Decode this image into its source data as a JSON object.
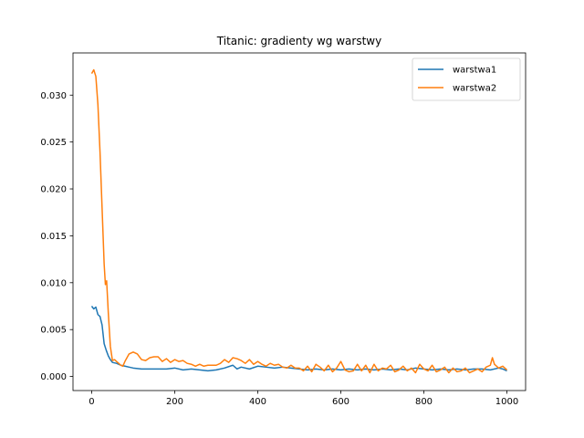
{
  "chart_data": {
    "type": "line",
    "title": "Titanic: gradienty wg warstwy",
    "xlabel": "",
    "ylabel": "",
    "xlim": [
      -45,
      1045
    ],
    "ylim": [
      -0.0015,
      0.0345
    ],
    "x_ticks": [
      0,
      200,
      400,
      600,
      800,
      1000
    ],
    "y_ticks": [
      0.0,
      0.005,
      0.01,
      0.015,
      0.02,
      0.025,
      0.03
    ],
    "x_tick_labels": [
      "0",
      "200",
      "400",
      "600",
      "800",
      "1000"
    ],
    "y_tick_labels": [
      "0.000",
      "0.005",
      "0.010",
      "0.015",
      "0.020",
      "0.025",
      "0.030"
    ],
    "grid": false,
    "legend_position": "top-right",
    "series": [
      {
        "name": "warstwa1",
        "color": "#1f77b4",
        "x": [
          0,
          5,
          10,
          15,
          20,
          25,
          30,
          35,
          40,
          45,
          50,
          60,
          70,
          80,
          90,
          100,
          120,
          140,
          160,
          180,
          200,
          220,
          240,
          260,
          280,
          300,
          320,
          340,
          350,
          360,
          380,
          400,
          420,
          440,
          460,
          480,
          500,
          520,
          540,
          560,
          580,
          600,
          620,
          640,
          660,
          680,
          700,
          720,
          740,
          760,
          780,
          800,
          820,
          840,
          860,
          880,
          900,
          920,
          940,
          960,
          980,
          990,
          1000
        ],
        "y": [
          0.0075,
          0.0072,
          0.0074,
          0.0066,
          0.0064,
          0.0055,
          0.0035,
          0.0028,
          0.0022,
          0.0018,
          0.0015,
          0.0014,
          0.0012,
          0.0011,
          0.001,
          0.0009,
          0.0008,
          0.0008,
          0.0008,
          0.0008,
          0.0009,
          0.0007,
          0.0008,
          0.0007,
          0.0006,
          0.0007,
          0.0009,
          0.0012,
          0.0008,
          0.001,
          0.0008,
          0.0011,
          0.001,
          0.0009,
          0.001,
          0.0009,
          0.0008,
          0.0007,
          0.0008,
          0.0007,
          0.0008,
          0.0007,
          0.0008,
          0.0007,
          0.0008,
          0.0007,
          0.0008,
          0.0007,
          0.0008,
          0.0007,
          0.0009,
          0.0008,
          0.0007,
          0.0008,
          0.0007,
          0.0008,
          0.0007,
          0.0008,
          0.0008,
          0.0007,
          0.0009,
          0.0008,
          0.0006
        ]
      },
      {
        "name": "warstwa2",
        "color": "#ff7f0e",
        "x": [
          0,
          5,
          10,
          15,
          20,
          25,
          30,
          33,
          36,
          40,
          45,
          50,
          55,
          60,
          65,
          70,
          75,
          80,
          90,
          100,
          110,
          120,
          130,
          140,
          150,
          160,
          170,
          180,
          190,
          200,
          210,
          220,
          230,
          240,
          250,
          260,
          270,
          280,
          290,
          300,
          310,
          320,
          330,
          340,
          350,
          360,
          370,
          380,
          390,
          400,
          410,
          420,
          430,
          440,
          450,
          460,
          470,
          480,
          490,
          500,
          510,
          520,
          530,
          540,
          550,
          560,
          570,
          580,
          590,
          600,
          610,
          620,
          630,
          640,
          650,
          660,
          670,
          680,
          690,
          700,
          710,
          720,
          730,
          740,
          750,
          760,
          770,
          780,
          790,
          800,
          810,
          820,
          830,
          840,
          850,
          860,
          870,
          880,
          890,
          900,
          910,
          920,
          930,
          940,
          950,
          960,
          965,
          970,
          980,
          990,
          1000
        ],
        "y": [
          0.0323,
          0.0327,
          0.032,
          0.029,
          0.024,
          0.018,
          0.012,
          0.0098,
          0.0102,
          0.0068,
          0.0032,
          0.0017,
          0.0018,
          0.0016,
          0.0014,
          0.0012,
          0.0011,
          0.0016,
          0.0024,
          0.0026,
          0.0024,
          0.0018,
          0.0017,
          0.002,
          0.0021,
          0.0021,
          0.0016,
          0.0019,
          0.0015,
          0.0018,
          0.0016,
          0.0017,
          0.0014,
          0.0013,
          0.0011,
          0.0013,
          0.0011,
          0.0012,
          0.0012,
          0.0012,
          0.0014,
          0.0018,
          0.0015,
          0.002,
          0.0019,
          0.0017,
          0.0014,
          0.0018,
          0.0013,
          0.0016,
          0.0013,
          0.0011,
          0.0014,
          0.0012,
          0.0013,
          0.001,
          0.0009,
          0.0012,
          0.0009,
          0.0009,
          0.0006,
          0.0011,
          0.0005,
          0.0013,
          0.001,
          0.0006,
          0.0012,
          0.0005,
          0.0009,
          0.0016,
          0.0007,
          0.0005,
          0.0006,
          0.0013,
          0.0006,
          0.0012,
          0.0004,
          0.0013,
          0.0006,
          0.0009,
          0.0008,
          0.0012,
          0.0005,
          0.0007,
          0.0011,
          0.0006,
          0.0009,
          0.0004,
          0.0013,
          0.0008,
          0.0006,
          0.0012,
          0.0005,
          0.0007,
          0.001,
          0.0004,
          0.0009,
          0.0005,
          0.0006,
          0.0009,
          0.0004,
          0.0006,
          0.0008,
          0.0005,
          0.001,
          0.0012,
          0.002,
          0.0013,
          0.0009,
          0.0011,
          0.0007
        ]
      }
    ]
  }
}
